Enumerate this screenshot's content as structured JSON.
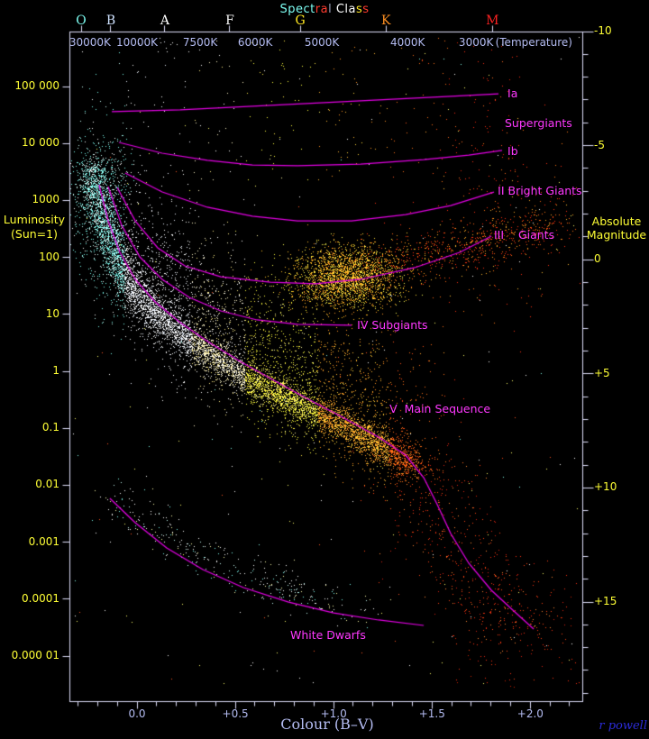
{
  "title": {
    "text": "Spectral Class",
    "chars": [
      {
        "ch": "S",
        "color": "#7dfdf2"
      },
      {
        "ch": "p",
        "color": "#7dfdf2"
      },
      {
        "ch": "e",
        "color": "#7dfdf2"
      },
      {
        "ch": "c",
        "color": "#7dfdf2"
      },
      {
        "ch": "t",
        "color": "#7dfdf2"
      },
      {
        "ch": "r",
        "color": "#ff3b2e"
      },
      {
        "ch": "a",
        "color": "#ff3b2e"
      },
      {
        "ch": "l",
        "color": "#9aa0b8"
      },
      {
        "ch": " ",
        "color": "#000000"
      },
      {
        "ch": "C",
        "color": "#ffffff"
      },
      {
        "ch": "l",
        "color": "#ffffff"
      },
      {
        "ch": "a",
        "color": "#ffffff"
      },
      {
        "ch": "s",
        "color": "#ffe825"
      },
      {
        "ch": "s",
        "color": "#ff3b2e"
      }
    ]
  },
  "top_axis": {
    "spectral_classes": [
      {
        "label": "O",
        "bv": -0.284,
        "color": "#7dfdf2"
      },
      {
        "label": "B",
        "bv": -0.133,
        "color": "#cfe2ff"
      },
      {
        "label": "A",
        "bv": 0.142,
        "color": "#ffffff"
      },
      {
        "label": "F",
        "bv": 0.472,
        "color": "#f8f8f8"
      },
      {
        "label": "G",
        "bv": 0.83,
        "color": "#ffe822"
      },
      {
        "label": "K",
        "bv": 1.266,
        "color": "#ff9022"
      },
      {
        "label": "M",
        "bv": 1.807,
        "color": "#ff2222"
      }
    ],
    "temperatures": [
      {
        "label": "30000K",
        "bv": -0.239
      },
      {
        "label": "10000K",
        "bv": 0.0
      },
      {
        "label": "7500K",
        "bv": 0.321
      },
      {
        "label": "6000K",
        "bv": 0.601
      },
      {
        "label": "5000K",
        "bv": 0.94
      },
      {
        "label": "4000K",
        "bv": 1.376
      },
      {
        "label": "3000K",
        "bv": 1.724
      },
      {
        "label": "(Temperature)",
        "bv": 2.018
      }
    ]
  },
  "left_axis": {
    "title_line1": "Luminosity",
    "title_line2": "(Sun=1)",
    "ticks": [
      {
        "label": "100 000",
        "logL": 5
      },
      {
        "label": "10 000",
        "logL": 4
      },
      {
        "label": "1000",
        "logL": 3
      },
      {
        "label": "100",
        "logL": 2
      },
      {
        "label": "10",
        "logL": 1
      },
      {
        "label": "1",
        "logL": 0
      },
      {
        "label": "0.1",
        "logL": -1
      },
      {
        "label": "0.01",
        "logL": -2
      },
      {
        "label": "0.001",
        "logL": -3
      },
      {
        "label": "0.0001",
        "logL": -4
      },
      {
        "label": "0.000 01",
        "logL": -5
      }
    ]
  },
  "right_axis": {
    "title_line1": "Absolute",
    "title_line2": "Magnitude",
    "ticks": [
      {
        "label": "-10",
        "mag": -10
      },
      {
        "label": "-5",
        "mag": -5
      },
      {
        "label": "0",
        "mag": 0
      },
      {
        "label": "+5",
        "mag": 5
      },
      {
        "label": "+10",
        "mag": 10
      },
      {
        "label": "+15",
        "mag": 15
      }
    ],
    "minor_from": -10,
    "minor_to": 19,
    "minor_step": 1
  },
  "bottom_axis": {
    "title": "Colour (B–V)",
    "ticks": [
      {
        "label": "0.0",
        "bv": 0.0
      },
      {
        "label": "+0.5",
        "bv": 0.5
      },
      {
        "label": "+1.0",
        "bv": 1.0
      },
      {
        "label": "+1.5",
        "bv": 1.5
      },
      {
        "label": "+2.0",
        "bv": 2.0
      }
    ],
    "minor_from": -0.3,
    "minor_to": 2.2,
    "minor_step": 0.1
  },
  "signature": {
    "text": "r powell"
  },
  "colors": {
    "background": "#000000",
    "frame": "#dcdcf8",
    "curve": "#e402e4",
    "curve_label": "#ff38ff",
    "yellow_axis_text": "#ffff35",
    "lavender_axis_text": "#b4bcf2",
    "signature_blue": "#2b2bd6"
  },
  "chart_data": {
    "type": "scatter",
    "title": "Spectral Class",
    "xlabel": "Colour (B–V)",
    "ylabel_left": "Luminosity (Sun=1)",
    "ylabel_right": "Absolute Magnitude",
    "x_range_bv": [
      -0.344,
      2.264
    ],
    "y_scale": "log10_luminosity",
    "y_range_logL": [
      -5.75,
      6.0
    ],
    "grid": false,
    "curves": [
      {
        "name": "Ia",
        "points": [
          [
            -0.128,
            4.557
          ],
          [
            0.22,
            4.589
          ],
          [
            0.678,
            4.668
          ],
          [
            1.137,
            4.747
          ],
          [
            1.595,
            4.826
          ],
          [
            1.838,
            4.873
          ]
        ]
      },
      {
        "name": "Ib",
        "points": [
          [
            -0.092,
            4.019
          ],
          [
            0.128,
            3.829
          ],
          [
            0.358,
            3.703
          ],
          [
            0.587,
            3.623
          ],
          [
            0.816,
            3.608
          ],
          [
            1.137,
            3.639
          ],
          [
            1.458,
            3.718
          ],
          [
            1.687,
            3.797
          ],
          [
            1.856,
            3.877
          ]
        ]
      },
      {
        "name": "II",
        "points": [
          [
            -0.06,
            3.481
          ],
          [
            0.128,
            3.148
          ],
          [
            0.358,
            2.88
          ],
          [
            0.587,
            2.722
          ],
          [
            0.816,
            2.642
          ],
          [
            1.091,
            2.642
          ],
          [
            1.366,
            2.753
          ],
          [
            1.595,
            2.911
          ],
          [
            1.815,
            3.148
          ]
        ]
      },
      {
        "name": "III",
        "points": [
          [
            -0.101,
            3.228
          ],
          [
            -0.009,
            2.642
          ],
          [
            0.105,
            2.168
          ],
          [
            0.243,
            1.851
          ],
          [
            0.426,
            1.661
          ],
          [
            0.678,
            1.566
          ],
          [
            0.908,
            1.535
          ],
          [
            1.137,
            1.614
          ],
          [
            1.412,
            1.82
          ],
          [
            1.641,
            2.089
          ],
          [
            1.802,
            2.373
          ]
        ]
      },
      {
        "name": "IV",
        "points": [
          [
            -0.147,
            3.244
          ],
          [
            -0.078,
            2.563
          ],
          [
            0.014,
            2.009
          ],
          [
            0.128,
            1.614
          ],
          [
            0.266,
            1.297
          ],
          [
            0.426,
            1.06
          ],
          [
            0.61,
            0.902
          ],
          [
            0.816,
            0.823
          ],
          [
            1.091,
            0.807
          ]
        ]
      },
      {
        "name": "V",
        "points": [
          [
            -0.193,
            3.275
          ],
          [
            -0.147,
            2.642
          ],
          [
            -0.087,
            2.088
          ],
          [
            -0.009,
            1.614
          ],
          [
            0.092,
            1.218
          ],
          [
            0.22,
            0.854
          ],
          [
            0.367,
            0.506
          ],
          [
            0.532,
            0.158
          ],
          [
            0.679,
            -0.127
          ],
          [
            0.862,
            -0.475
          ],
          [
            1.045,
            -0.807
          ],
          [
            1.228,
            -1.155
          ],
          [
            1.366,
            -1.472
          ],
          [
            1.458,
            -1.867
          ],
          [
            1.527,
            -2.342
          ],
          [
            1.595,
            -2.848
          ],
          [
            1.687,
            -3.37
          ],
          [
            1.802,
            -3.845
          ],
          [
            1.916,
            -4.209
          ],
          [
            2.017,
            -4.525
          ]
        ]
      },
      {
        "name": "White Dwarfs",
        "points": [
          [
            -0.138,
            -2.231
          ],
          [
            -0.009,
            -2.658
          ],
          [
            0.151,
            -3.101
          ],
          [
            0.335,
            -3.481
          ],
          [
            0.541,
            -3.797
          ],
          [
            0.771,
            -4.051
          ],
          [
            1.0,
            -4.241
          ],
          [
            1.229,
            -4.367
          ],
          [
            1.458,
            -4.462
          ]
        ]
      }
    ],
    "labels": [
      {
        "text": "Ia",
        "bv": 1.884,
        "logL": 4.858
      },
      {
        "text": "Supergiants",
        "bv": 1.87,
        "logL": 4.335
      },
      {
        "text": "Ib",
        "bv": 1.884,
        "logL": 3.845
      },
      {
        "text": "II Bright Giants",
        "bv": 1.834,
        "logL": 3.148
      },
      {
        "text": "III    Giants",
        "bv": 1.815,
        "logL": 2.373
      },
      {
        "text": "IV Subgiants",
        "bv": 1.119,
        "logL": 0.791
      },
      {
        "text": "V  Main Sequence",
        "bv": 1.284,
        "logL": -0.68
      },
      {
        "text": "White Dwarfs",
        "bv": 0.779,
        "logL": -4.652
      }
    ],
    "clouds": [
      {
        "name": "main-sequence-band",
        "type": "band",
        "count": 8500,
        "sigma": 9,
        "halo": {
          "sigma": 24,
          "frac": 0.28
        },
        "colors": "by_bv",
        "line": [
          [
            -0.238,
            3.59
          ],
          [
            -0.183,
            2.8
          ],
          [
            -0.124,
            2.17
          ],
          [
            -0.055,
            1.65
          ],
          [
            0.037,
            1.22
          ],
          [
            0.151,
            0.85
          ],
          [
            0.289,
            0.48
          ],
          [
            0.449,
            0.11
          ],
          [
            0.61,
            -0.21
          ],
          [
            0.77,
            -0.49
          ],
          [
            0.931,
            -0.76
          ],
          [
            1.114,
            -1.08
          ],
          [
            1.274,
            -1.39
          ],
          [
            1.412,
            -1.71
          ]
        ]
      },
      {
        "name": "hot-upper-left",
        "type": "box",
        "count": 240,
        "mode": "gauss",
        "box": [
          -0.31,
          -0.01,
          2.72,
          4.15
        ],
        "colors": [
          [
            "#7dfdf2",
            0.5
          ],
          [
            "#c9fff8",
            0.2
          ],
          [
            "#ffffff",
            0.3
          ]
        ]
      },
      {
        "name": "supergiant-field",
        "type": "box",
        "count": 300,
        "mode": "uniform",
        "box": [
          -0.3,
          1.95,
          3.35,
          5.85
        ],
        "colors": "by_bv"
      },
      {
        "name": "mid-field",
        "type": "band",
        "count": 1600,
        "sigma": 38,
        "colors": "by_bv",
        "line": [
          [
            -0.009,
            2.25
          ],
          [
            0.22,
            1.54
          ],
          [
            0.495,
            0.9
          ],
          [
            0.77,
            0.35
          ],
          [
            1.045,
            -0.13
          ],
          [
            1.274,
            -0.6
          ]
        ]
      },
      {
        "name": "giant-clump",
        "type": "blob",
        "count": 2400,
        "center": [
          1.068,
          1.66
        ],
        "sigma": [
          30,
          17
        ],
        "colors": [
          [
            "#ffdd33",
            0.3
          ],
          [
            "#ffbb22",
            0.3
          ],
          [
            "#ff9922",
            0.25
          ],
          [
            "#ffff55",
            0.15
          ]
        ]
      },
      {
        "name": "giant-branch-trail",
        "type": "band",
        "count": 650,
        "sigma": 16,
        "colors": [
          [
            "#ff6611",
            0.35
          ],
          [
            "#ff3311",
            0.4
          ],
          [
            "#ffaa22",
            0.25
          ]
        ],
        "line": [
          [
            1.183,
            1.8
          ],
          [
            1.458,
            1.99
          ],
          [
            1.71,
            2.25
          ],
          [
            1.939,
            2.44
          ],
          [
            2.122,
            2.56
          ]
        ]
      },
      {
        "name": "upper-right-red-field",
        "type": "blob",
        "count": 240,
        "center": [
          1.893,
          2.56
        ],
        "sigma": [
          50,
          48
        ],
        "colors": [
          [
            "#ff3311",
            0.6
          ],
          [
            "#ff7711",
            0.25
          ],
          [
            "#ffbb33",
            0.15
          ]
        ]
      },
      {
        "name": "white-dwarf-sequence",
        "type": "band",
        "count": 330,
        "sigma": 13,
        "colors": [
          [
            "#ffffff",
            0.5
          ],
          [
            "#c9fff8",
            0.2
          ],
          [
            "#7dfdf2",
            0.15
          ],
          [
            "#ffffaa",
            0.15
          ]
        ],
        "line": [
          [
            -0.119,
            -2.17
          ],
          [
            0.06,
            -2.66
          ],
          [
            0.266,
            -3.09
          ],
          [
            0.486,
            -3.45
          ],
          [
            0.701,
            -3.77
          ],
          [
            0.908,
            -3.97
          ],
          [
            1.137,
            -4.18
          ]
        ]
      },
      {
        "name": "lower-main-sequence-sparse",
        "type": "band",
        "count": 520,
        "sigma": 30,
        "colors": [
          [
            "#ff4411",
            0.5
          ],
          [
            "#dd2211",
            0.3
          ],
          [
            "#ff8833",
            0.2
          ]
        ],
        "line": [
          [
            1.389,
            -1.63
          ],
          [
            1.503,
            -2.34
          ],
          [
            1.595,
            -2.98
          ],
          [
            1.723,
            -3.69
          ],
          [
            1.861,
            -4.21
          ],
          [
            2.054,
            -4.64
          ]
        ]
      },
      {
        "name": "bottom-right-sparse",
        "type": "box",
        "count": 90,
        "mode": "uniform",
        "box": [
          1.6,
          2.25,
          -5.6,
          -3.2
        ],
        "colors": [
          [
            "#ff3311",
            0.7
          ],
          [
            "#cc2200",
            0.3
          ]
        ]
      },
      {
        "name": "field-noise",
        "type": "box",
        "count": 260,
        "mode": "uniform",
        "box": [
          -0.33,
          2.25,
          -5.5,
          5.9
        ],
        "colors": [
          [
            "#ffffff",
            0.45
          ],
          [
            "#ffff66",
            0.3
          ],
          [
            "#ff5522",
            0.15
          ],
          [
            "#88ffee",
            0.1
          ]
        ]
      }
    ]
  }
}
